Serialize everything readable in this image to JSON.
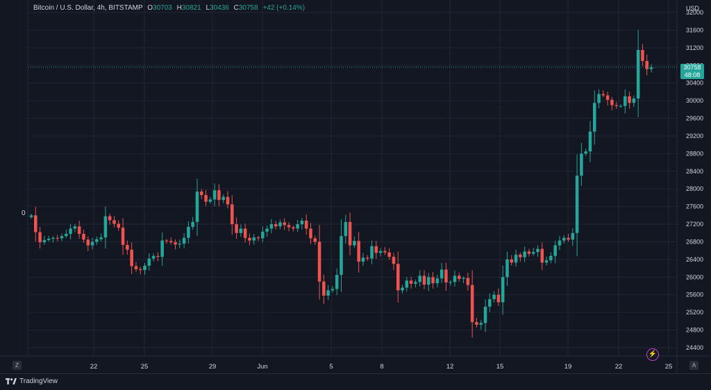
{
  "legend": {
    "symbol": "Bitcoin / U.S. Dollar, 4h, BITSTAMP",
    "o_key": "O",
    "o_val": "30703",
    "h_key": "H",
    "h_val": "30821",
    "l_key": "L",
    "l_val": "30436",
    "c_key": "C",
    "c_val": "30758",
    "change": "+42 (+0.14%)"
  },
  "axis_currency": "USD",
  "last_price": {
    "value": "30758",
    "countdown": "48:08"
  },
  "zero_label": "0",
  "left_button": "Z",
  "right_button": "A",
  "brand": "TradingView",
  "colors": {
    "up": "#26a69a",
    "down": "#ef5350",
    "grid": "#232734",
    "bg": "#131722",
    "flash": "#c13fd1"
  },
  "chart_data": {
    "type": "candlestick",
    "timeframe": "4h",
    "ylim": [
      24200,
      32000
    ],
    "yticks": [
      24400,
      24800,
      25200,
      25600,
      26000,
      26400,
      26800,
      27200,
      27600,
      28000,
      28400,
      28800,
      29200,
      29600,
      30000,
      30400,
      30800,
      31200,
      31600,
      32000
    ],
    "xticks": [
      "22",
      "25",
      "29",
      "Jun",
      "5",
      "8",
      "12",
      "15",
      "19",
      "22",
      "25"
    ],
    "last": 30758,
    "closes": [
      27400,
      27020,
      26790,
      26840,
      26870,
      26890,
      26880,
      26930,
      26980,
      27100,
      27150,
      26980,
      26850,
      26720,
      26800,
      26860,
      26900,
      27380,
      27290,
      27210,
      27120,
      26730,
      26620,
      26250,
      26180,
      26160,
      26260,
      26420,
      26480,
      26460,
      26830,
      26820,
      26790,
      26740,
      26760,
      26890,
      27140,
      27250,
      27940,
      27860,
      27710,
      27760,
      27970,
      27750,
      27820,
      27650,
      27200,
      27000,
      27100,
      26890,
      26830,
      26900,
      26880,
      27030,
      27100,
      27200,
      27150,
      27240,
      27180,
      27130,
      27100,
      27200,
      27280,
      27100,
      26880,
      26800,
      25900,
      25580,
      25700,
      25730,
      26050,
      26930,
      27250,
      26720,
      26820,
      26350,
      26440,
      26420,
      26700,
      26550,
      26590,
      26560,
      26460,
      26300,
      25700,
      25760,
      25920,
      25850,
      25890,
      26030,
      25830,
      26000,
      25860,
      25970,
      26170,
      25880,
      25890,
      26030,
      25960,
      25980,
      25820,
      24980,
      24920,
      24960,
      25330,
      25500,
      25600,
      25430,
      26000,
      26400,
      26330,
      26510,
      26450,
      26580,
      26530,
      26570,
      26640,
      26330,
      26380,
      26480,
      26720,
      26830,
      26890,
      26850,
      27000,
      28300,
      28800,
      28850,
      29300,
      29950,
      30150,
      30120,
      30020,
      29900,
      29880,
      29880,
      30100,
      29950,
      30050,
      31150,
      30900,
      30716,
      30758
    ]
  }
}
